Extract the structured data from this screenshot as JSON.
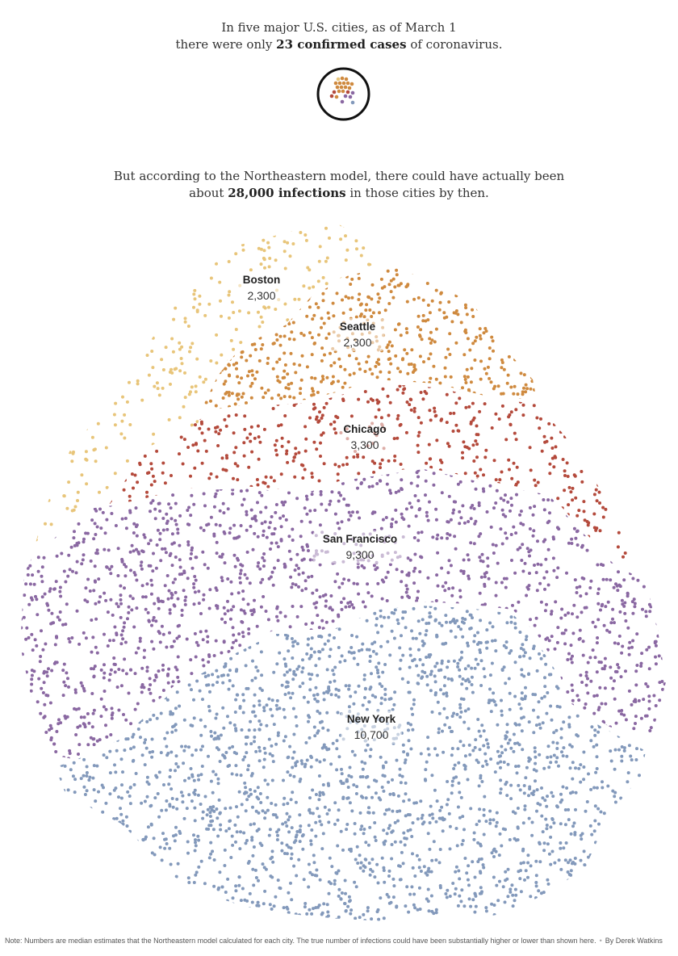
{
  "intro1": {
    "line1": "In five major U.S. cities, as of March 1",
    "line2_pre": "there were only ",
    "line2_bold": "23 confirmed cases",
    "line2_post": " of coronavirus."
  },
  "intro2": {
    "line1": "But according to the Northeastern model, there could have actually been",
    "line2_pre": "about ",
    "line2_bold": "28,000 infections",
    "line2_post": " in those cities by then."
  },
  "note": {
    "text": "Note: Numbers are median estimates that the Northeastern model calculated for each city. The true number of infections could have been substantially higher or lower than shown here.",
    "separator": "•",
    "byline": "By Derek Watkins"
  },
  "chart_data": {
    "type": "dot-cluster",
    "confirmed_cases_total": 23,
    "estimated_infections_total": 28000,
    "cities": [
      {
        "name": "Boston",
        "value_label": "2,300",
        "value": 2300,
        "color": "#e8c57a"
      },
      {
        "name": "Seattle",
        "value_label": "2,300",
        "value": 2300,
        "color": "#cf8a3f"
      },
      {
        "name": "Chicago",
        "value_label": "3,300",
        "value": 3300,
        "color": "#b44a3c"
      },
      {
        "name": "San Francisco",
        "value_label": "9,300",
        "value": 9300,
        "color": "#8a68a2"
      },
      {
        "name": "New York",
        "value_label": "10,700",
        "value": 10700,
        "color": "#8399bb"
      }
    ]
  }
}
